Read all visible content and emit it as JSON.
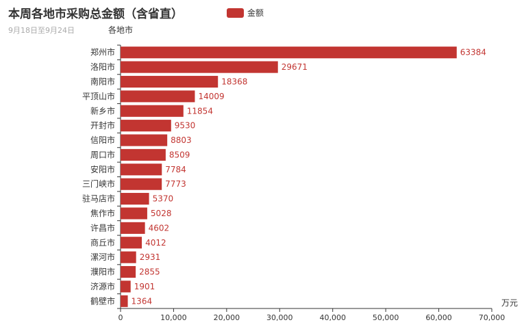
{
  "chart_data": {
    "type": "bar",
    "orientation": "horizontal",
    "title": "本周各地市采购总金额（含省直）",
    "subtitle": "9月18日至9月24日",
    "ylabel": "各地市",
    "xlabel": "万元",
    "xlim": [
      0,
      70000
    ],
    "xticks": [
      0,
      10000,
      20000,
      30000,
      40000,
      50000,
      60000,
      70000
    ],
    "xtick_labels": [
      "0",
      "10,000",
      "20,000",
      "30,000",
      "40,000",
      "50,000",
      "60,000",
      "70,000"
    ],
    "legend_position": "top-center",
    "grid": false,
    "color": "#c23531",
    "categories": [
      "郑州市",
      "洛阳市",
      "南阳市",
      "平顶山市",
      "新乡市",
      "开封市",
      "信阳市",
      "周口市",
      "安阳市",
      "三门峡市",
      "驻马店市",
      "焦作市",
      "许昌市",
      "商丘市",
      "漯河市",
      "濮阳市",
      "济源市",
      "鹤壁市"
    ],
    "series": [
      {
        "name": "金额",
        "values": [
          63384,
          29671,
          18368,
          14009,
          11854,
          9530,
          8803,
          8509,
          7784,
          7773,
          5370,
          5028,
          4602,
          4012,
          2931,
          2855,
          1901,
          1364
        ]
      }
    ]
  }
}
